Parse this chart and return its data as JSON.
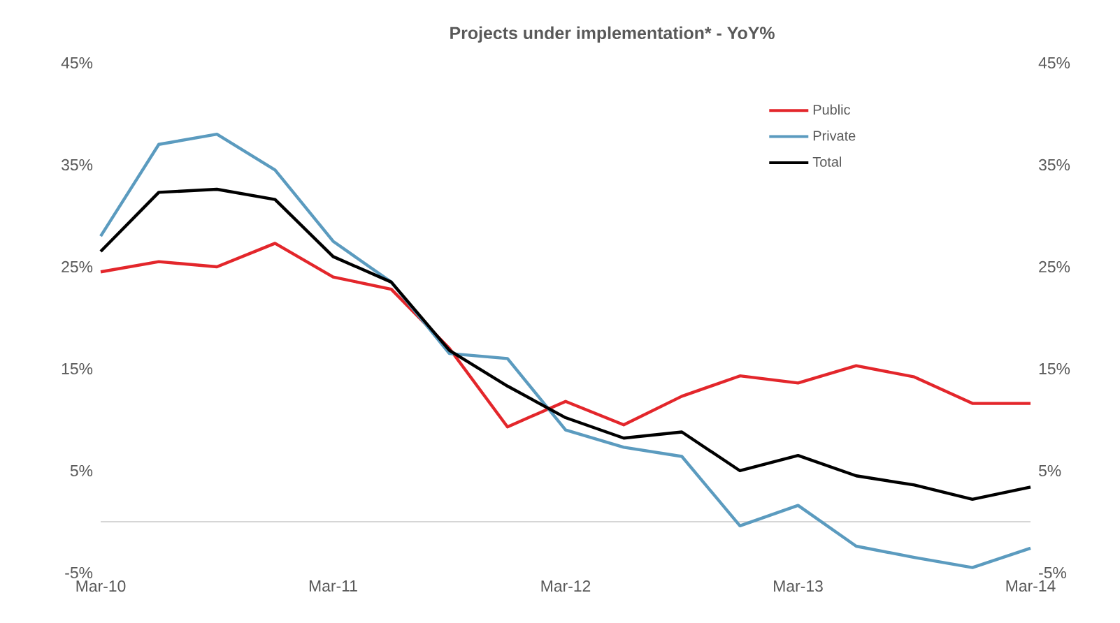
{
  "chart_data": {
    "type": "line",
    "title": "Projects under implementation* - YoY%",
    "categories": [
      "Mar-10",
      null,
      null,
      null,
      "Mar-11",
      null,
      null,
      null,
      "Mar-12",
      null,
      null,
      null,
      "Mar-13",
      null,
      null,
      null,
      "Mar-14"
    ],
    "series": [
      {
        "name": "Public",
        "color": "#e3262b",
        "values": [
          24.5,
          25.5,
          25,
          27.3,
          24,
          22.8,
          17,
          9.3,
          11.8,
          9.5,
          12.3,
          14.3,
          13.6,
          15.3,
          14.2,
          11.6,
          11.6
        ]
      },
      {
        "name": "Private",
        "color": "#5b9bbf",
        "values": [
          28,
          37,
          38,
          34.5,
          27.5,
          23.5,
          16.5,
          16,
          9,
          7.3,
          6.4,
          -0.4,
          1.6,
          -2.4,
          -3.5,
          -4.5,
          -2.6
        ]
      },
      {
        "name": "Total",
        "color": "#000000",
        "values": [
          26.5,
          32.3,
          32.6,
          31.6,
          26,
          23.5,
          16.8,
          13.3,
          10.2,
          8.2,
          8.8,
          5,
          6.5,
          4.5,
          3.6,
          2.2,
          3.4
        ]
      }
    ],
    "ylim": [
      -5,
      45
    ],
    "yticks": [
      {
        "value": -5,
        "label": "-5%"
      },
      {
        "value": 5,
        "label": "5%"
      },
      {
        "value": 15,
        "label": "15%"
      },
      {
        "value": 25,
        "label": "25%"
      },
      {
        "value": 35,
        "label": "35%"
      },
      {
        "value": 45,
        "label": "45%"
      }
    ],
    "y2lim": [
      -5,
      45
    ],
    "y2ticks": [
      {
        "value": -5,
        "label": "-5%"
      },
      {
        "value": 5,
        "label": "5%"
      },
      {
        "value": 15,
        "label": "15%"
      },
      {
        "value": 25,
        "label": "25%"
      },
      {
        "value": 35,
        "label": "35%"
      },
      {
        "value": 45,
        "label": "45%"
      }
    ],
    "ref_lines": [
      {
        "axis": "y",
        "value": 0,
        "color": "#c8c8c8"
      }
    ],
    "grid": false,
    "legend": "top right",
    "marker": "none",
    "line_style": "solid"
  }
}
